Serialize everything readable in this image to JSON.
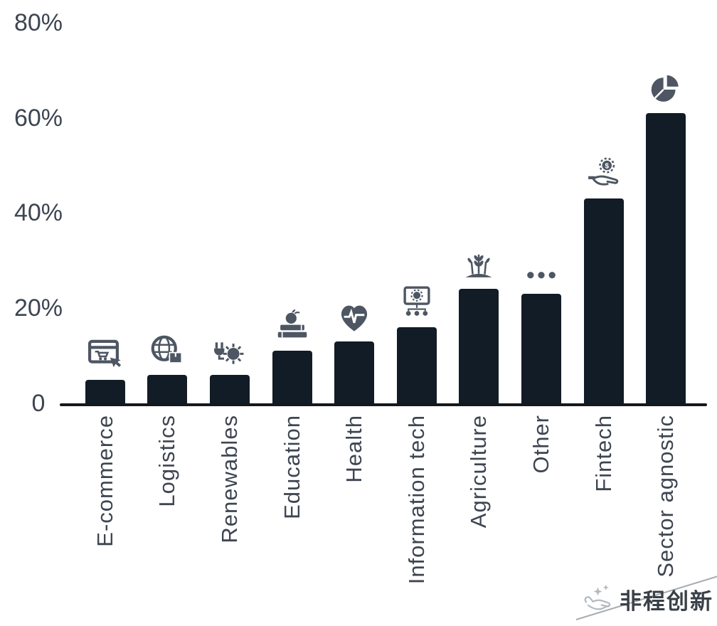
{
  "chart_data": {
    "type": "bar",
    "title": "",
    "xlabel": "",
    "ylabel": "",
    "unit": "%",
    "categories": [
      "E-commerce",
      "Logistics",
      "Renewables",
      "Education",
      "Health",
      "Information tech",
      "Agriculture",
      "Other",
      "Fintech",
      "Sector agnostic"
    ],
    "values": [
      5,
      6,
      6,
      11,
      13,
      16,
      24,
      23,
      43,
      61
    ],
    "icons": [
      "ecommerce-icon",
      "logistics-globe-icon",
      "renewables-sun-plug-icon",
      "education-books-apple-icon",
      "health-heart-pulse-icon",
      "information-tech-monitor-gear-icon",
      "agriculture-plant-icon",
      "other-ellipsis-icon",
      "fintech-gear-hand-icon",
      "pie-chart-icon"
    ],
    "ylim": [
      0,
      80
    ],
    "yticks": [
      {
        "label": "0",
        "value": 0
      },
      {
        "label": "20%",
        "value": 20
      },
      {
        "label": "40%",
        "value": 40
      },
      {
        "label": "60%",
        "value": 60
      },
      {
        "label": "80%",
        "value": 80
      }
    ],
    "grid": false,
    "legend": false,
    "bar_color": "#121c26",
    "icon_color": "#4d5662",
    "label_color": "#3d4551"
  },
  "watermark": {
    "text": "非程创新",
    "icon": "hand-sparkle-icon"
  }
}
